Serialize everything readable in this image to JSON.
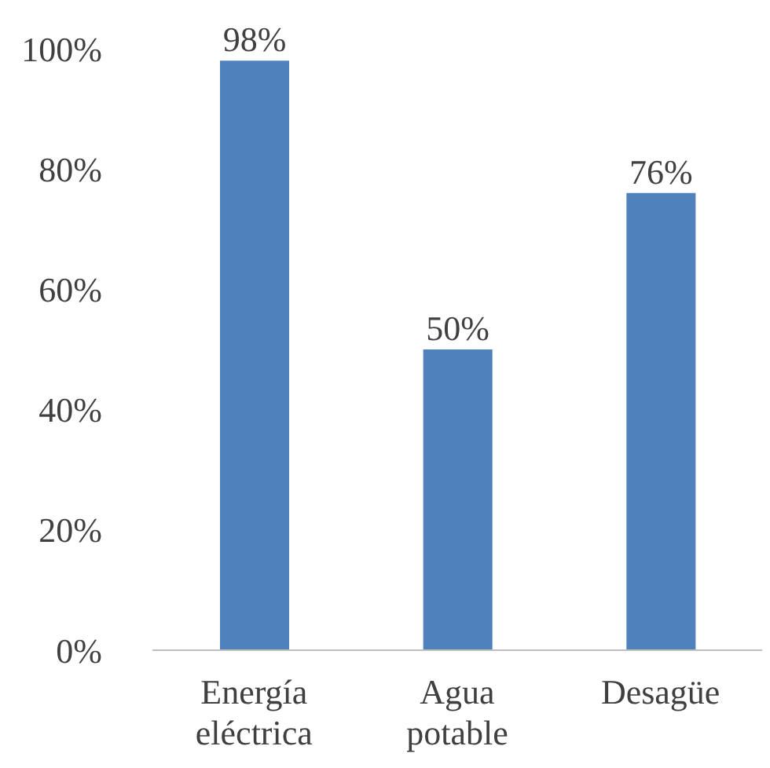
{
  "chart_data": {
    "type": "bar",
    "categories": [
      "Energía eléctrica",
      "Agua potable",
      "Desagüe"
    ],
    "values": [
      98,
      50,
      76
    ],
    "color": "#4f81bd",
    "value_labels": [
      "98%",
      "50%",
      "76%"
    ],
    "ylim": [
      0,
      100
    ],
    "yticks": [
      {
        "value": 0,
        "label": "0%"
      },
      {
        "value": 20,
        "label": "20%"
      },
      {
        "value": 40,
        "label": "40%"
      },
      {
        "value": 60,
        "label": "60%"
      },
      {
        "value": 80,
        "label": "80%"
      },
      {
        "value": 100,
        "label": "100%"
      }
    ],
    "grid": false,
    "legend": false
  }
}
